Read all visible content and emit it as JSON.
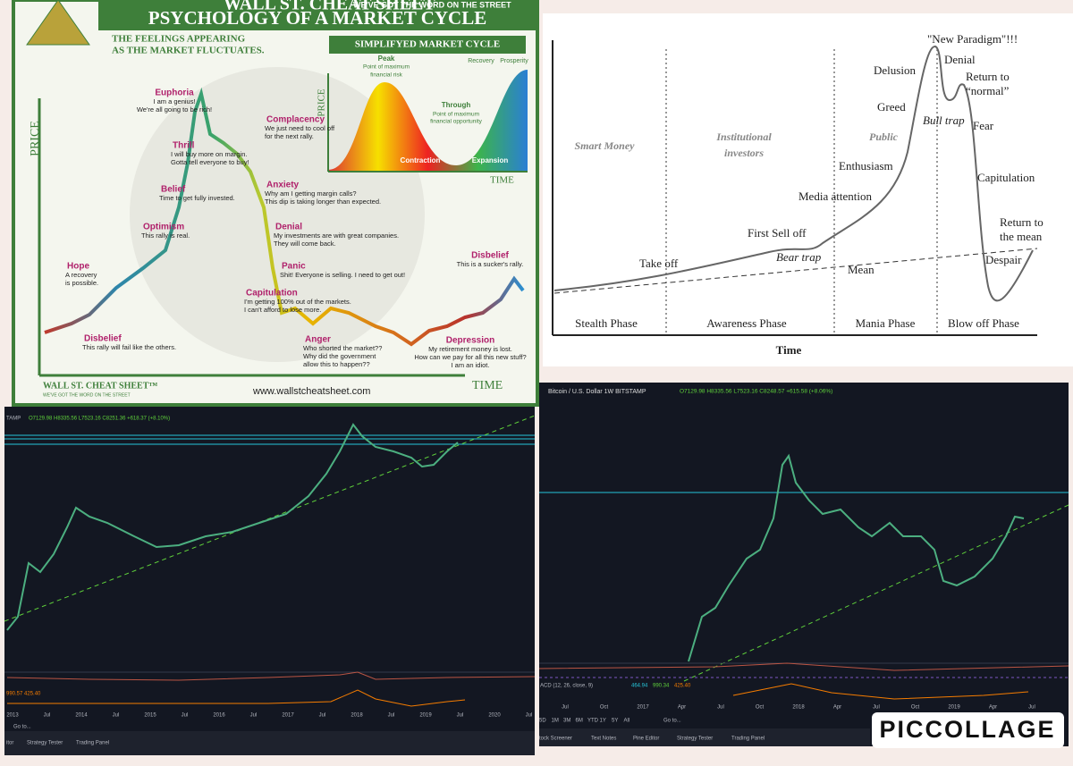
{
  "infographic": {
    "brand": "WALL ST. CHEAT SHEET",
    "tagline": "WE'VE GOT THE WORD ON THE STREET",
    "title": "PSYCHOLOGY OF A MARKET CYCLE",
    "subtitle": [
      "THE FEELINGS APPEARING",
      "AS THE MARKET FLUCTUATES."
    ],
    "axis_price": "PRICE",
    "axis_time": "TIME",
    "stages": [
      {
        "name": "Hope",
        "quote": [
          "A recovery",
          "is possible."
        ]
      },
      {
        "name": "Optimism",
        "quote": [
          "This rally is real."
        ]
      },
      {
        "name": "Belief",
        "quote": [
          "Time to get fully invested."
        ]
      },
      {
        "name": "Thrill",
        "quote": [
          "I will buy more on margin.",
          "Gotta tell everyone to buy!"
        ]
      },
      {
        "name": "Euphoria",
        "quote": [
          "I am a genius!",
          "We're all going to be rich!"
        ]
      },
      {
        "name": "Complacency",
        "quote": [
          "We just need to cool off",
          "for the next rally."
        ]
      },
      {
        "name": "Anxiety",
        "quote": [
          "Why am I getting margin calls?",
          "This dip is taking longer than expected."
        ]
      },
      {
        "name": "Denial",
        "quote": [
          "My investments are with great companies.",
          "They will come back."
        ]
      },
      {
        "name": "Panic",
        "quote": [
          "Shit! Everyone is selling. I need to get out!"
        ]
      },
      {
        "name": "Capitulation",
        "quote": [
          "I'm getting 100% out of the markets.",
          "I can't afford to lose more."
        ]
      },
      {
        "name": "Anger",
        "quote": [
          "Who shorted the market??",
          "Why did the government",
          "allow this to happen??"
        ]
      },
      {
        "name": "Depression",
        "quote": [
          "My retirement money is lost.",
          "How can we pay for all this new stuff?",
          "I am an idiot."
        ]
      },
      {
        "name": "Disbelief",
        "quote": [
          "This rally will fail like the others."
        ]
      },
      {
        "name": "Disbelief",
        "quote": [
          "This is a sucker's rally."
        ]
      }
    ],
    "inset": {
      "title": "SIMPLIFYED MARKET CYCLE",
      "peak": "Peak",
      "peak_note": [
        "Point of maximum",
        "financial risk"
      ],
      "trough": "Through",
      "trough_note": [
        "Point of maximum",
        "financial opportunity"
      ],
      "recovery": "Recovery",
      "prosperity": "Prosperity",
      "contraction": "Contraction",
      "expansion": "Expansion",
      "axis_price": "PRICE",
      "axis_time": "TIME"
    },
    "footer_brand": "WALL ST. CHEAT SHEET™",
    "footer_tagline": "WE'VE GOT THE WORD ON THE STREET",
    "url": "www.wallstcheatsheet.com"
  },
  "phases_diagram": {
    "groups": [
      "Smart Money",
      [
        "Institutional",
        "investors"
      ],
      "Public"
    ],
    "labels": [
      "Take off",
      "First Sell off",
      "Bear trap",
      "Media attention",
      "Enthusiasm",
      "Greed",
      "Delusion",
      "\"New Paradigm\"!!!",
      "Bull trap",
      "Denial",
      [
        "Return to",
        "“normal”"
      ],
      "Fear",
      "Capitulation",
      [
        "Return to",
        "the mean"
      ],
      "Despair",
      "Mean"
    ],
    "phases": [
      "Stealth Phase",
      "Awareness Phase",
      "Mania Phase",
      "Blow off Phase"
    ],
    "axis": "Time"
  },
  "chart_left": {
    "symbol": "TAMP",
    "ohlc": "O7129.98 H8335.56 L7523.16 C8251.36 +618.37 (+8.10%)",
    "macd": "990.57  425.40",
    "x_labels": [
      "2013",
      "Jul",
      "2014",
      "Jul",
      "2015",
      "Jul",
      "2016",
      "Jul",
      "2017",
      "Jul",
      "2018",
      "Jul",
      "2019",
      "Jul",
      "2020",
      "Jul"
    ],
    "goto": "Go to...",
    "tabs": [
      "itor",
      "Strategy Tester",
      "Trading Panel"
    ]
  },
  "chart_right": {
    "symbol": "Bitcoin / U.S. Dollar  1W  BITSTAMP",
    "ohlc": "O7129.98 H8335.56 L7523.16 C8248.57 +615.58 (+8.06%)",
    "macd_label": "ACD (12, 26, close, 9)",
    "macd_values": [
      "464.94",
      "990.34",
      "425.40"
    ],
    "x_labels": [
      "Jul",
      "Oct",
      "2017",
      "Apr",
      "Jul",
      "Oct",
      "2018",
      "Apr",
      "Jul",
      "Oct",
      "2019",
      "Apr",
      "Jul"
    ],
    "ranges": [
      "5D",
      "1M",
      "3M",
      "6M",
      "YTD",
      "1Y",
      "5Y",
      "All"
    ],
    "goto": "Go to...",
    "tabs": [
      "tock Screener",
      "Text Notes",
      "Pine Editor",
      "Strategy Tester",
      "Trading Panel"
    ]
  },
  "logo": "PICCOLLAGE"
}
